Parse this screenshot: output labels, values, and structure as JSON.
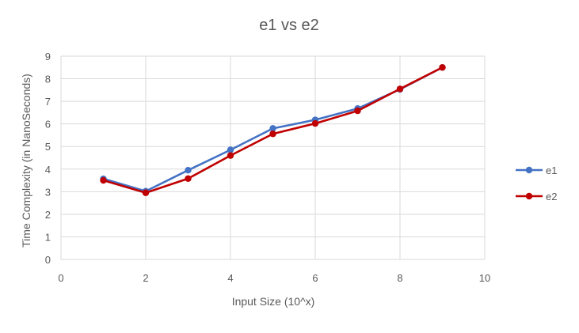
{
  "chart_data": {
    "type": "line",
    "title": "e1 vs e2",
    "xlabel": "Input Size (10^x)",
    "ylabel": "Time Complexity (in NanoSeconds)",
    "xlim": [
      0,
      10
    ],
    "ylim": [
      0,
      9
    ],
    "x_ticks": [
      0,
      2,
      4,
      6,
      8,
      10
    ],
    "y_ticks": [
      0,
      1,
      2,
      3,
      4,
      5,
      6,
      7,
      8,
      9
    ],
    "grid": true,
    "legend_position": "right",
    "series": [
      {
        "name": "e1",
        "color": "#4472C4",
        "x": [
          1,
          2,
          3,
          4,
          5,
          6,
          7,
          8,
          9
        ],
        "y": [
          3.57,
          3.02,
          3.95,
          4.85,
          5.8,
          6.18,
          6.68,
          7.53,
          8.5
        ]
      },
      {
        "name": "e2",
        "color": "#C00000",
        "x": [
          1,
          2,
          3,
          4,
          5,
          6,
          7,
          8,
          9
        ],
        "y": [
          3.5,
          2.95,
          3.58,
          4.6,
          5.56,
          6.02,
          6.58,
          7.55,
          8.5
        ]
      }
    ]
  }
}
